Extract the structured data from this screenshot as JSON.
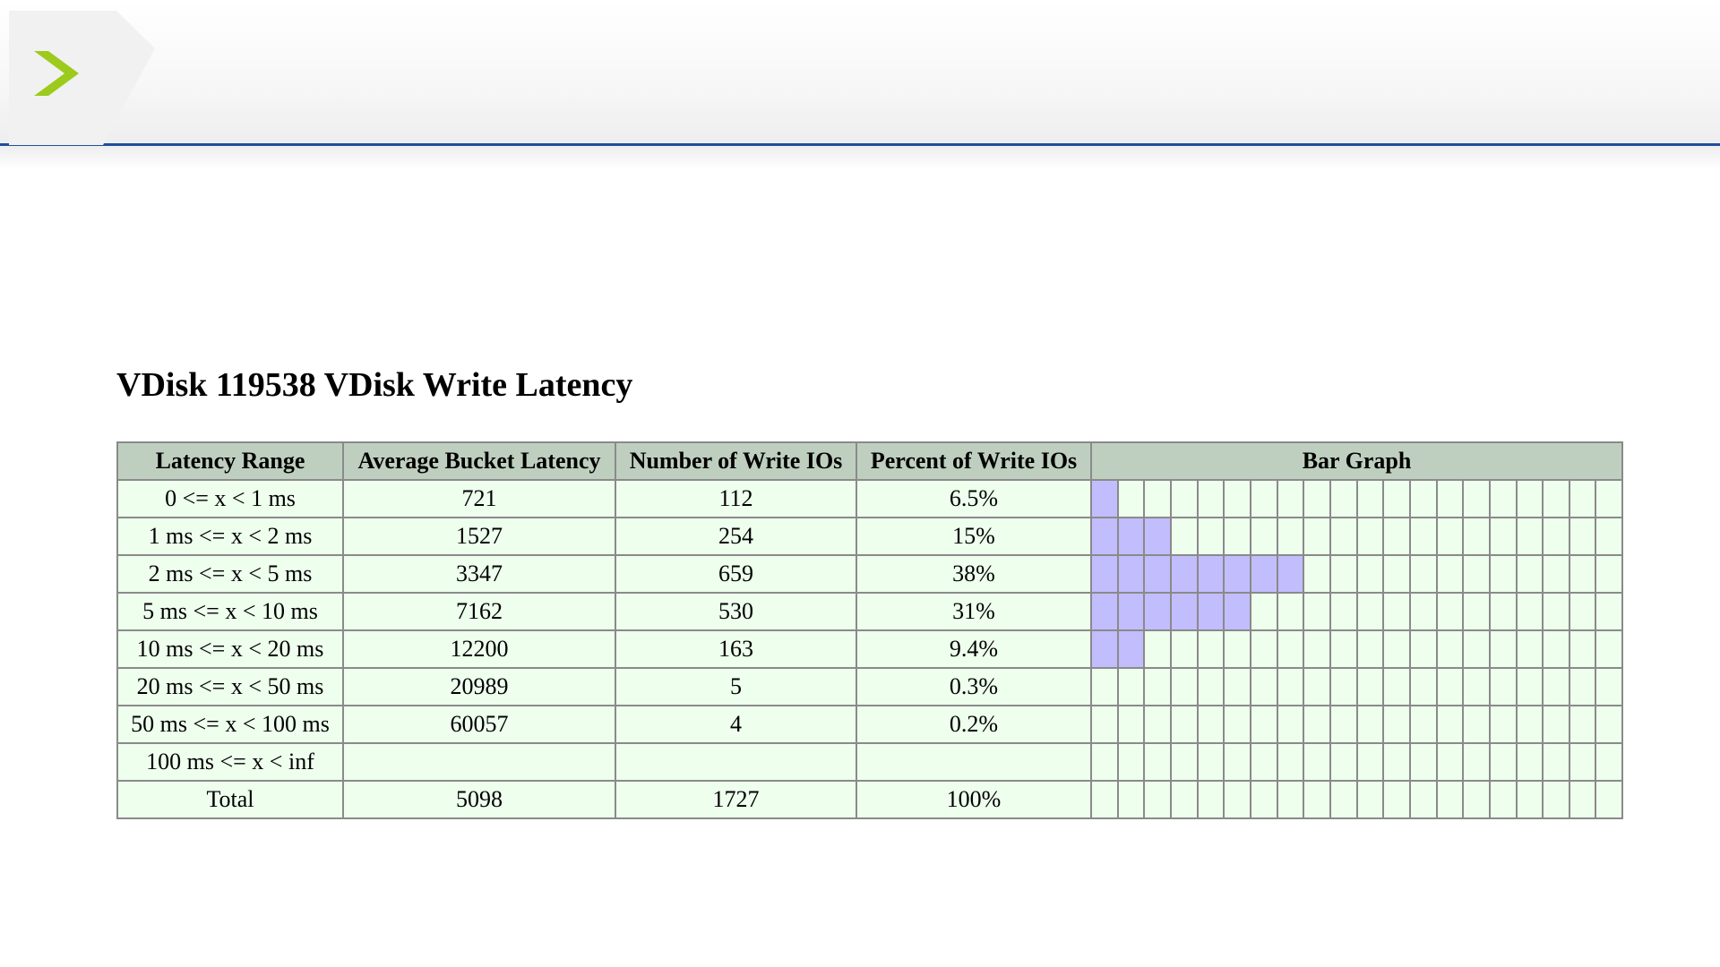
{
  "title": "VDisk 119538 VDisk Write Latency",
  "colors": {
    "header_line": "#1f4d9c",
    "logo_green": "#9ccb1d",
    "table_header_bg": "#bfcfbf",
    "table_cell_bg": "#eeffee",
    "bar_fill": "#c2bdfd"
  },
  "logo_icon": "chevron-right-icon",
  "table": {
    "headers": [
      "Latency Range",
      "Average Bucket Latency",
      "Number of Write IOs",
      "Percent of Write IOs",
      "Bar Graph"
    ],
    "rows": [
      {
        "range": "0 <= x < 1 ms",
        "avg": "721",
        "count": "112",
        "percent": "6.5%",
        "bar_units": 1
      },
      {
        "range": "1 ms <= x < 2 ms",
        "avg": "1527",
        "count": "254",
        "percent": "15%",
        "bar_units": 3
      },
      {
        "range": "2 ms <= x < 5 ms",
        "avg": "3347",
        "count": "659",
        "percent": "38%",
        "bar_units": 8
      },
      {
        "range": "5 ms <= x < 10 ms",
        "avg": "7162",
        "count": "530",
        "percent": "31%",
        "bar_units": 6
      },
      {
        "range": "10 ms <= x < 20 ms",
        "avg": "12200",
        "count": "163",
        "percent": "9.4%",
        "bar_units": 2
      },
      {
        "range": "20 ms <= x < 50 ms",
        "avg": "20989",
        "count": "5",
        "percent": "0.3%",
        "bar_units": 0
      },
      {
        "range": "50 ms <= x < 100 ms",
        "avg": "60057",
        "count": "4",
        "percent": "0.2%",
        "bar_units": 0
      },
      {
        "range": "100 ms <= x < inf",
        "avg": "",
        "count": "",
        "percent": "",
        "bar_units": 0
      },
      {
        "range": "Total",
        "avg": "5098",
        "count": "1727",
        "percent": "100%",
        "bar_units": 0
      }
    ],
    "bar_scale_units": 20
  }
}
